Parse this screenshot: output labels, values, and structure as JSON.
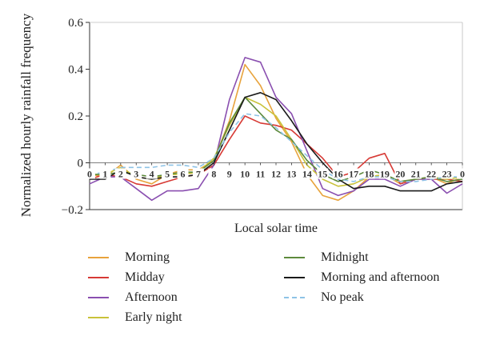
{
  "chart_data": {
    "type": "line",
    "ylabel": "Normalized hourly rainfall frequency",
    "xlabel": "Local solar time",
    "ylim": [
      -0.2,
      0.6
    ],
    "yticks": [
      -0.2,
      0,
      0.2,
      0.4,
      0.6
    ],
    "ytick_labels": [
      "−0.2",
      "0",
      "0.2",
      "0.4",
      "0.6"
    ],
    "x": [
      0,
      1,
      2,
      3,
      4,
      5,
      6,
      7,
      8,
      9,
      10,
      11,
      12,
      13,
      14,
      15,
      16,
      17,
      18,
      19,
      20,
      21,
      22,
      23,
      24
    ],
    "xtick_labels": [
      "0",
      "1",
      "2",
      "3",
      "4",
      "5",
      "6",
      "7",
      "8",
      "9",
      "10",
      "11",
      "12",
      "13",
      "14",
      "15",
      "16",
      "17",
      "18",
      "19",
      "20",
      "21",
      "22",
      "23",
      "0"
    ],
    "grid": false,
    "legend_placement": "bottom",
    "series": [
      {
        "name": "Morning",
        "color": "#e8a33c",
        "dashed": false,
        "values": [
          -0.05,
          -0.06,
          -0.01,
          -0.07,
          -0.09,
          -0.05,
          -0.03,
          -0.03,
          0.01,
          0.18,
          0.42,
          0.33,
          0.19,
          0.09,
          -0.05,
          -0.14,
          -0.16,
          -0.12,
          -0.06,
          -0.05,
          -0.09,
          -0.07,
          -0.06,
          -0.09,
          -0.06
        ]
      },
      {
        "name": "Midday",
        "color": "#d73a35",
        "dashed": false,
        "values": [
          -0.07,
          -0.05,
          -0.06,
          -0.09,
          -0.1,
          -0.08,
          -0.06,
          -0.05,
          -0.01,
          0.1,
          0.2,
          0.17,
          0.16,
          0.14,
          0.08,
          0.02,
          -0.06,
          -0.04,
          0.02,
          0.04,
          -0.09,
          -0.07,
          -0.07,
          -0.07,
          -0.08
        ]
      },
      {
        "name": "Afternoon",
        "color": "#8a4fb0",
        "dashed": false,
        "values": [
          -0.09,
          -0.06,
          -0.06,
          -0.11,
          -0.16,
          -0.12,
          -0.12,
          -0.11,
          -0.01,
          0.27,
          0.45,
          0.43,
          0.28,
          0.21,
          0.05,
          -0.11,
          -0.14,
          -0.12,
          -0.07,
          -0.07,
          -0.1,
          -0.07,
          -0.07,
          -0.13,
          -0.09
        ]
      },
      {
        "name": "Early night",
        "color": "#c9c23a",
        "dashed": false,
        "values": [
          -0.05,
          -0.05,
          -0.02,
          -0.06,
          -0.07,
          -0.05,
          -0.05,
          -0.04,
          0.02,
          0.16,
          0.28,
          0.25,
          0.2,
          0.1,
          -0.01,
          -0.07,
          -0.1,
          -0.09,
          -0.06,
          -0.05,
          -0.08,
          -0.07,
          -0.06,
          -0.07,
          -0.06
        ]
      },
      {
        "name": "Midnight",
        "color": "#5d8a3c",
        "dashed": false,
        "values": [
          -0.05,
          -0.05,
          -0.04,
          -0.05,
          -0.06,
          -0.05,
          -0.04,
          -0.04,
          0.01,
          0.17,
          0.28,
          0.21,
          0.14,
          0.1,
          0.01,
          -0.05,
          -0.08,
          -0.06,
          -0.03,
          -0.05,
          -0.08,
          -0.07,
          -0.06,
          -0.08,
          -0.07
        ]
      },
      {
        "name": "Morning and afternoon",
        "color": "#1a1a1a",
        "dashed": false,
        "values": [
          -0.07,
          -0.07,
          -0.03,
          -0.06,
          -0.07,
          -0.06,
          -0.06,
          -0.05,
          0.0,
          0.14,
          0.28,
          0.3,
          0.27,
          0.18,
          0.08,
          0.0,
          -0.07,
          -0.11,
          -0.1,
          -0.1,
          -0.12,
          -0.12,
          -0.12,
          -0.09,
          -0.08
        ]
      },
      {
        "name": "No peak",
        "color": "#8ec3e6",
        "dashed": true,
        "values": [
          -0.05,
          -0.04,
          -0.02,
          -0.02,
          -0.02,
          -0.01,
          -0.01,
          -0.02,
          0.02,
          0.13,
          0.21,
          0.2,
          0.15,
          0.09,
          0.03,
          -0.03,
          -0.07,
          -0.08,
          -0.06,
          -0.06,
          -0.08,
          -0.08,
          -0.07,
          -0.06,
          -0.06
        ]
      }
    ]
  }
}
